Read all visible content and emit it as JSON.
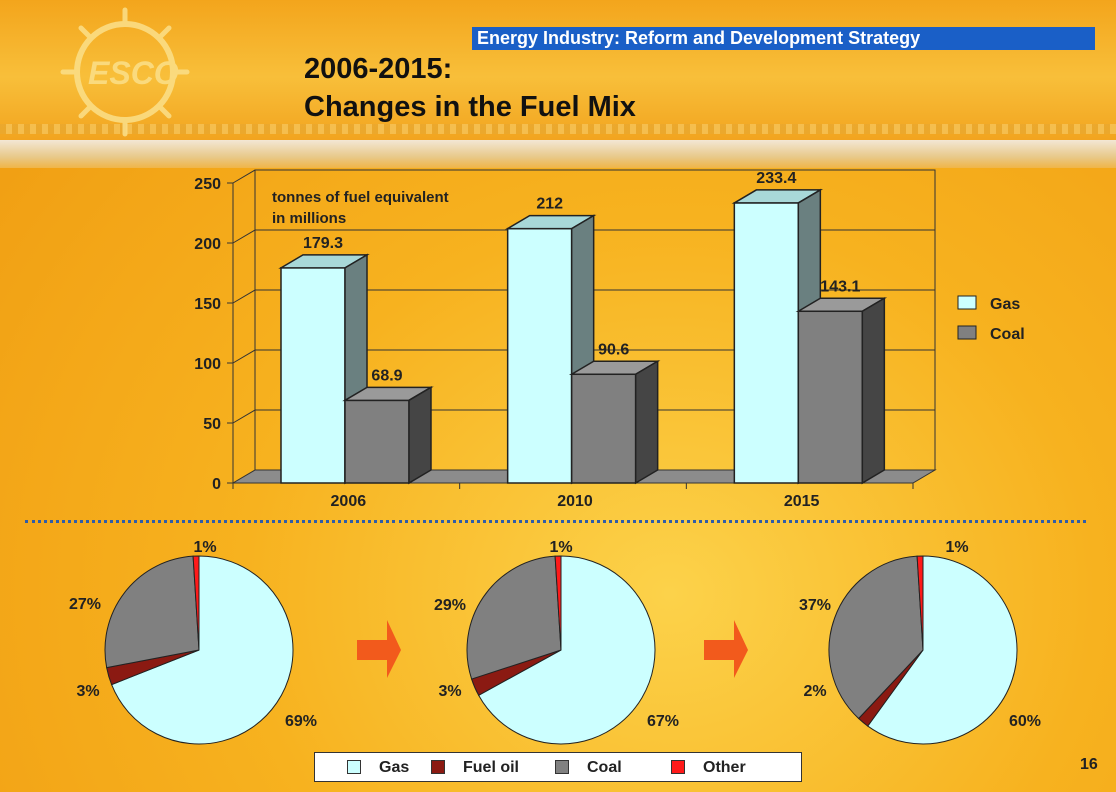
{
  "banner": "Energy Industry: Reform and Development Strategy",
  "title_line1": "2006-2015:",
  "title_line2": "Changes in the Fuel Mix",
  "page_number": "16",
  "colors": {
    "gas": "#ccffff",
    "coal": "#808080",
    "fuel_oil": "#8b1a12",
    "other": "#ff1a1a",
    "banner": "#1a5fc7"
  },
  "chart_data": [
    {
      "type": "bar",
      "annotation": "tonnes of fuel equivalent in millions",
      "annotation_lines": [
        "tonnes of fuel equivalent",
        "in millions"
      ],
      "categories": [
        "2006",
        "2010",
        "2015"
      ],
      "series": [
        {
          "name": "Gas",
          "values": [
            179.3,
            212,
            233.4
          ],
          "labels": [
            "179.3",
            "212",
            "233.4"
          ]
        },
        {
          "name": "Coal",
          "values": [
            68.9,
            90.6,
            143.1
          ],
          "labels": [
            "68.9",
            "90.6",
            "143.1"
          ]
        }
      ],
      "yticks": [
        "0",
        "50",
        "100",
        "150",
        "200",
        "250"
      ],
      "ylim": [
        0,
        250
      ],
      "grid": true,
      "legend": "right"
    },
    {
      "type": "pie",
      "categories": [
        "Gas",
        "Fuel oil",
        "Coal",
        "Other"
      ],
      "values": [
        69,
        3,
        27,
        1
      ],
      "labels": [
        "69%",
        "3%",
        "27%",
        "1%"
      ]
    },
    {
      "type": "pie",
      "categories": [
        "Gas",
        "Fuel oil",
        "Coal",
        "Other"
      ],
      "values": [
        67,
        3,
        29,
        1
      ],
      "labels": [
        "67%",
        "3%",
        "29%",
        "1%"
      ]
    },
    {
      "type": "pie",
      "categories": [
        "Gas",
        "Fuel oil",
        "Coal",
        "Other"
      ],
      "values": [
        60,
        2,
        37,
        1
      ],
      "labels": [
        "60%",
        "2%",
        "37%",
        "1%"
      ]
    }
  ],
  "pie_legend": [
    "Gas",
    "Fuel oil",
    "Coal",
    "Other"
  ]
}
